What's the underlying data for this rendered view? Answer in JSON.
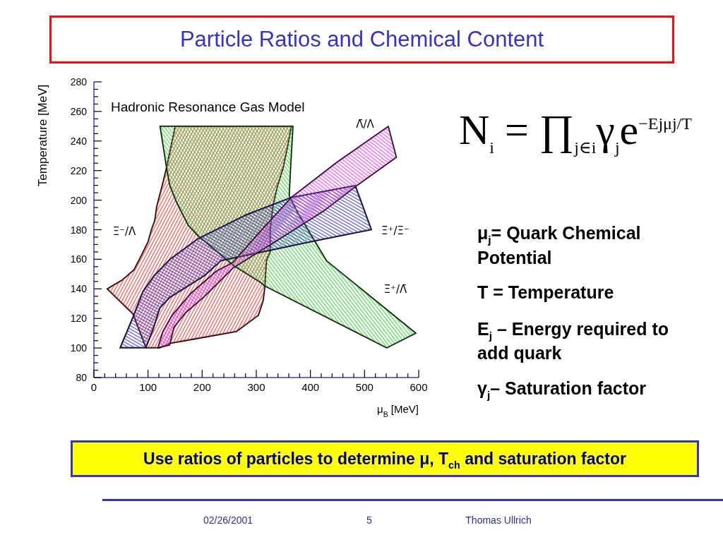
{
  "chart_data": {
    "type": "area",
    "title": "Particle Ratios and Chemical Content",
    "xlabel": "μ$_{B}$ [MeV]",
    "ylabel": "Temperature [MeV]",
    "xlim": [
      0,
      600
    ],
    "ylim": [
      80,
      280
    ],
    "xticks": [
      0,
      {
        "value": 20,
        "label": null
      },
      {
        "value": 40,
        "label": null
      },
      {
        "value": 60,
        "label": null
      },
      {
        "value": 80,
        "label": null
      },
      100,
      {
        "value": 120,
        "label": null
      },
      {
        "value": 140,
        "label": null
      },
      {
        "value": 160,
        "label": null
      },
      {
        "value": 180,
        "label": null
      },
      200,
      {
        "value": 220,
        "label": null
      },
      {
        "value": 240,
        "label": null
      },
      {
        "value": 260,
        "label": null
      },
      {
        "value": 280,
        "label": null
      },
      300,
      {
        "value": 320,
        "label": null
      },
      {
        "value": 340,
        "label": null
      },
      {
        "value": 360,
        "label": null
      },
      {
        "value": 380,
        "label": null
      },
      400,
      {
        "value": 420,
        "label": null
      },
      {
        "value": 440,
        "label": null
      },
      {
        "value": 460,
        "label": null
      },
      {
        "value": 480,
        "label": null
      },
      500,
      {
        "value": 520,
        "label": null
      },
      {
        "value": 540,
        "label": null
      },
      {
        "value": 560,
        "label": null
      },
      {
        "value": 580,
        "label": null
      },
      600
    ],
    "yticks": [
      80,
      {
        "value": 85,
        "label": null
      },
      {
        "value": 90,
        "label": null
      },
      {
        "value": 95,
        "label": null
      },
      100,
      {
        "value": 105,
        "label": null
      },
      {
        "value": 110,
        "label": null
      },
      {
        "value": 115,
        "label": null
      },
      120,
      {
        "value": 125,
        "label": null
      },
      {
        "value": 130,
        "label": null
      },
      {
        "value": 135,
        "label": null
      },
      140,
      {
        "value": 145,
        "label": null
      },
      {
        "value": 150,
        "label": null
      },
      {
        "value": 155,
        "label": null
      },
      160,
      {
        "value": 165,
        "label": null
      },
      {
        "value": 170,
        "label": null
      },
      {
        "value": 175,
        "label": null
      },
      180,
      {
        "value": 185,
        "label": null
      },
      {
        "value": 190,
        "label": null
      },
      {
        "value": 195,
        "label": null
      },
      200,
      {
        "value": 205,
        "label": null
      },
      {
        "value": 210,
        "label": null
      },
      {
        "value": 215,
        "label": null
      },
      220,
      {
        "value": 225,
        "label": null
      },
      {
        "value": 230,
        "label": null
      },
      {
        "value": 235,
        "label": null
      },
      240,
      {
        "value": 245,
        "label": null
      },
      {
        "value": 250,
        "label": null
      },
      {
        "value": 255,
        "label": null
      },
      260,
      {
        "value": 265,
        "label": null
      },
      {
        "value": 270,
        "label": null
      },
      {
        "value": 275,
        "label": null
      },
      280
    ],
    "series": [
      {
        "color": "#ee3333",
        "x": [
          150,
          134,
          126,
          116,
          112,
          106,
          100,
          88,
          74,
          52,
          24,
          72,
          96,
          122,
          140,
          263,
          304,
          313,
          316,
          319,
          326,
          326,
          331,
          339,
          350,
          359,
          365
        ],
        "values": [
          250,
          222,
          210,
          196,
          186,
          180,
          172,
          163,
          153,
          146,
          140,
          123,
          100,
          100,
          103,
          111,
          122,
          132,
          141,
          159,
          165,
          180,
          196,
          209,
          222,
          238,
          250
        ]
      },
      {
        "color": "#33cc33",
        "x": [
          541,
          315,
          309,
          257,
          192,
          174,
          152,
          140,
          134,
          122,
          368,
          364,
          361,
          376,
          394,
          430,
          595
        ],
        "values": [
          100,
          142,
          144,
          156,
          176,
          183,
          199,
          210,
          222,
          250,
          250,
          225,
          203,
          192,
          181,
          159,
          110
        ]
      },
      {
        "color": "#3333cc",
        "x": [
          48,
          72,
          90,
          111,
          140,
          192,
          280,
          365,
          483,
          513,
          404,
          235,
          205,
          179,
          140,
          122,
          110,
          96
        ],
        "values": [
          100,
          121,
          138,
          149,
          160,
          174,
          190,
          202,
          210,
          180,
          172,
          159,
          149,
          143,
          134,
          127,
          113,
          100
        ]
      },
      {
        "color": "#ee33ee",
        "x": [
          118,
          127,
          144,
          179,
          226,
          257,
          310,
          365,
          450,
          544,
          559,
          483,
          426,
          340,
          257,
          205,
          170,
          148,
          140
        ],
        "values": [
          100,
          111,
          122,
          137,
          152,
          158,
          180,
          202,
          226,
          250,
          229,
          209,
          193,
          173,
          154,
          135,
          124,
          114,
          102
        ]
      }
    ],
    "annotations": [
      "Hadronic Resonance Gas Model",
      "N$_{i}$ = ∏$_{j∈i}$γ$_{j}$e$^{−Ejμj/T}$",
      "μ$_{j}$= Quark Chemical Potential",
      "T = Temperature",
      "E$_{j}$ – Energy required to add quark",
      "γ$_{j}$– Saturation factor",
      "Use ratios of particles to determine μ, T$_{ch}$ and saturation factor",
      "02/26/2001",
      "5",
      "Thomas Ullrich",
      "Λ̄/Λ",
      "Ξ⁻/Λ",
      "Ξ̄⁺/Ξ⁻",
      "Ξ̄⁺/Λ̄"
    ]
  }
}
